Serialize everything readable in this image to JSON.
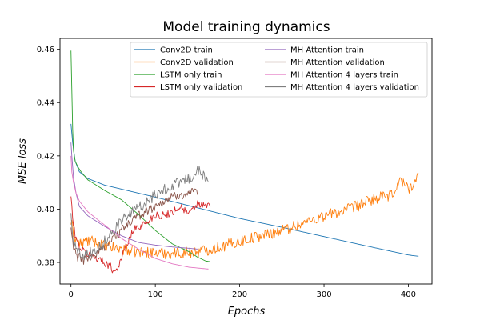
{
  "chart_data": {
    "type": "line",
    "title": "Model training dynamics",
    "xlabel": "Epochs",
    "ylabel": "MSE loss",
    "xlim": [
      -13,
      428
    ],
    "ylim": [
      0.3719,
      0.4641
    ],
    "xticks": [
      0,
      100,
      200,
      300,
      400
    ],
    "yticks": [
      0.38,
      0.4,
      0.42,
      0.44,
      0.46
    ],
    "ytick_labels": [
      "0.38",
      "0.40",
      "0.42",
      "0.44",
      "0.46"
    ],
    "grid": false,
    "legend_position": "top-right",
    "legend_columns": 2,
    "series": [
      {
        "name": "Conv2D train",
        "color": "#1f77b4",
        "noise": 0,
        "x": [
          0,
          2,
          5,
          10,
          20,
          40,
          60,
          100,
          150,
          200,
          250,
          300,
          350,
          400,
          412
        ],
        "y": [
          0.432,
          0.425,
          0.418,
          0.414,
          0.4115,
          0.409,
          0.4075,
          0.4045,
          0.4005,
          0.3965,
          0.3932,
          0.3897,
          0.3862,
          0.3828,
          0.3823
        ]
      },
      {
        "name": "Conv2D validation",
        "color": "#ff7f0e",
        "noise": 0.0022,
        "x": [
          0,
          5,
          10,
          20,
          30,
          40,
          60,
          80,
          100,
          120,
          150,
          180,
          200,
          250,
          300,
          330,
          360,
          380,
          390,
          400,
          405,
          412
        ],
        "y": [
          0.395,
          0.389,
          0.387,
          0.388,
          0.3875,
          0.386,
          0.385,
          0.384,
          0.3835,
          0.3835,
          0.384,
          0.386,
          0.388,
          0.392,
          0.3975,
          0.4,
          0.404,
          0.405,
          0.411,
          0.408,
          0.409,
          0.412
        ]
      },
      {
        "name": "LSTM only train",
        "color": "#2ca02c",
        "noise": 0,
        "x": [
          0,
          1,
          2,
          3,
          5,
          8,
          12,
          20,
          40,
          60,
          80,
          100,
          120,
          140,
          150,
          160,
          165
        ],
        "y": [
          0.4595,
          0.445,
          0.43,
          0.422,
          0.418,
          0.416,
          0.414,
          0.411,
          0.407,
          0.4035,
          0.398,
          0.392,
          0.387,
          0.384,
          0.382,
          0.3805,
          0.3803
        ]
      },
      {
        "name": "LSTM only validation",
        "color": "#d62728",
        "noise": 0.0015,
        "x": [
          0,
          3,
          8,
          15,
          25,
          35,
          45,
          52,
          58,
          65,
          75,
          90,
          100,
          110,
          120,
          130,
          140,
          150,
          160,
          165
        ],
        "y": [
          0.405,
          0.393,
          0.387,
          0.384,
          0.3825,
          0.381,
          0.379,
          0.3765,
          0.38,
          0.386,
          0.3925,
          0.395,
          0.398,
          0.3975,
          0.399,
          0.401,
          0.398,
          0.402,
          0.401,
          0.402
        ]
      },
      {
        "name": "MH Attention train",
        "color": "#9467bd",
        "noise": 0,
        "x": [
          0,
          1,
          3,
          6,
          10,
          20,
          40,
          60,
          80,
          100,
          120,
          140,
          150
        ],
        "y": [
          0.425,
          0.42,
          0.412,
          0.406,
          0.401,
          0.3975,
          0.3935,
          0.39,
          0.3875,
          0.3865,
          0.3858,
          0.3853,
          0.385
        ]
      },
      {
        "name": "MH Attention validation",
        "color": "#8c564b",
        "noise": 0.0018,
        "x": [
          0,
          3,
          8,
          15,
          20,
          30,
          40,
          50,
          60,
          70,
          80,
          90,
          100,
          110,
          120,
          130,
          140,
          150
        ],
        "y": [
          0.393,
          0.385,
          0.382,
          0.381,
          0.3815,
          0.383,
          0.386,
          0.389,
          0.392,
          0.395,
          0.3975,
          0.3995,
          0.401,
          0.403,
          0.4045,
          0.4055,
          0.406,
          0.406
        ]
      },
      {
        "name": "MH Attention 4 layers train",
        "color": "#e377c2",
        "noise": 0,
        "x": [
          0,
          1,
          3,
          6,
          10,
          20,
          40,
          60,
          80,
          100,
          120,
          140,
          163
        ],
        "y": [
          0.42,
          0.414,
          0.41,
          0.406,
          0.403,
          0.399,
          0.394,
          0.389,
          0.385,
          0.3815,
          0.3795,
          0.3782,
          0.3775
        ]
      },
      {
        "name": "MH Attention 4 layers validation",
        "color": "#7f7f7f",
        "noise": 0.002,
        "x": [
          0,
          3,
          8,
          15,
          25,
          35,
          45,
          55,
          65,
          75,
          85,
          95,
          105,
          115,
          125,
          135,
          145,
          150,
          155,
          160,
          163
        ],
        "y": [
          0.398,
          0.388,
          0.384,
          0.383,
          0.384,
          0.386,
          0.39,
          0.394,
          0.397,
          0.3995,
          0.4015,
          0.404,
          0.4065,
          0.408,
          0.4095,
          0.411,
          0.412,
          0.415,
          0.413,
          0.412,
          0.412
        ]
      }
    ]
  }
}
